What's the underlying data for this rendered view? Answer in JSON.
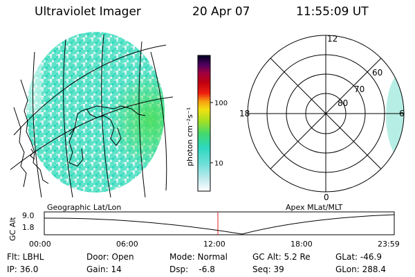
{
  "header": {
    "instrument": "Ultraviolet Imager",
    "date": "20 Apr 07",
    "time": "11:55:09 UT"
  },
  "colorbar": {
    "unit_label": "photon cm⁻²s⁻¹",
    "tick_100": "100",
    "tick_10": "10"
  },
  "polar": {
    "mlt_12": "12",
    "mlt_18": "18",
    "mlt_6": "6",
    "mlt_0": "0",
    "lat_60": "60",
    "lat_70": "70",
    "lat_80": "80"
  },
  "panels": {
    "left_caption": "Geographic Lat/Lon",
    "right_caption": "Apex MLat/MLT"
  },
  "altitude_plot": {
    "ylabel": "GC Alt",
    "y_top": "9.0",
    "y_bottom": "1.8",
    "x_ticks": [
      "00:00",
      "06:00",
      "12:00",
      "18:00",
      "23:59"
    ]
  },
  "status": {
    "filter": "Flt: LBHL",
    "ip": "IP: 36.0",
    "door": "Door: Open",
    "gain": "Gain: 14",
    "mode": "Mode: Normal",
    "dsp": "Dsp:    -6.8",
    "gc_alt": "GC Alt: 5.2 Re",
    "seq": "Seq: 39",
    "glat": "GLat: -46.9",
    "glon": "GLon: 288.4"
  }
}
